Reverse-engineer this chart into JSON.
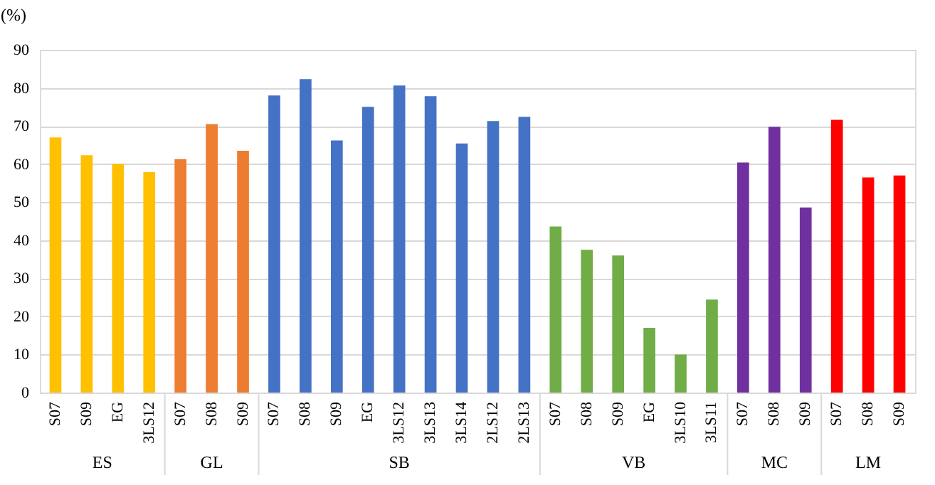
{
  "chart_data": {
    "type": "bar",
    "ylabel": "(%)",
    "categories": [
      "S07",
      "S09",
      "EG",
      "3LS12",
      "S07",
      "S08",
      "S09",
      "S07",
      "S08",
      "S09",
      "EG",
      "3LS12",
      "3LS13",
      "3LS14",
      "2LS12",
      "2LS13",
      "S07",
      "S08",
      "S09",
      "EG",
      "3LS10",
      "3LS11",
      "S07",
      "S08",
      "S09",
      "S07",
      "S08",
      "S09"
    ],
    "series": [
      {
        "color": "#ffc000",
        "values": [
          67,
          62.3,
          60,
          57.9,
          null,
          null,
          null,
          null,
          null,
          null,
          null,
          null,
          null,
          null,
          null,
          null,
          null,
          null,
          null,
          null,
          null,
          null,
          null,
          null,
          null,
          null,
          null,
          null
        ]
      },
      {
        "color": "#ed7d31",
        "values": [
          null,
          null,
          null,
          null,
          61.3,
          70.5,
          63.5,
          null,
          null,
          null,
          null,
          null,
          null,
          null,
          null,
          null,
          null,
          null,
          null,
          null,
          null,
          null,
          null,
          null,
          null,
          null,
          null,
          null
        ]
      },
      {
        "color": "#4472c4",
        "values": [
          null,
          null,
          null,
          null,
          null,
          null,
          null,
          78,
          82.3,
          66.2,
          75,
          80.6,
          77.8,
          65.4,
          71.3,
          72.4,
          null,
          null,
          null,
          null,
          null,
          null,
          null,
          null,
          null,
          null,
          null,
          null
        ]
      },
      {
        "color": "#70ad47",
        "values": [
          null,
          null,
          null,
          null,
          null,
          null,
          null,
          null,
          null,
          null,
          null,
          null,
          null,
          null,
          null,
          null,
          43.6,
          37.5,
          36,
          17,
          10,
          24.4,
          null,
          null,
          null,
          null,
          null,
          null
        ]
      },
      {
        "color": "#7030a0",
        "values": [
          null,
          null,
          null,
          null,
          null,
          null,
          null,
          null,
          null,
          null,
          null,
          null,
          null,
          null,
          null,
          null,
          null,
          null,
          null,
          null,
          null,
          null,
          60.4,
          69.8,
          48.6,
          null,
          null,
          null
        ]
      },
      {
        "color": "#ff0000",
        "values": [
          null,
          null,
          null,
          null,
          null,
          null,
          null,
          null,
          null,
          null,
          null,
          null,
          null,
          null,
          null,
          null,
          null,
          null,
          null,
          null,
          null,
          null,
          null,
          null,
          null,
          71.6,
          56.5,
          57
        ]
      }
    ],
    "annotations": [
      "ES",
      "GL",
      "SB",
      "VB",
      "MC",
      "LM"
    ],
    "ylim": [
      0,
      90
    ],
    "yticks": [
      0,
      10,
      20,
      30,
      40,
      50,
      60,
      70,
      80,
      90
    ],
    "grid": "y",
    "legend": false
  }
}
